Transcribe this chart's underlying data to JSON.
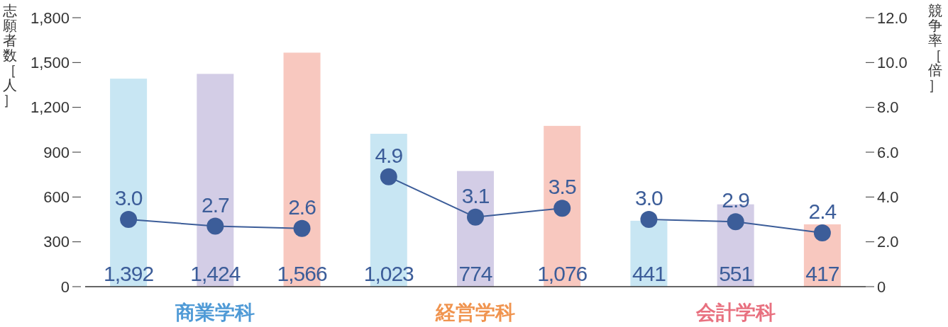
{
  "chart_data": {
    "type": "bar",
    "ylabel": "志願者数［人］",
    "y2label": "競争率［倍］",
    "categories": [
      null,
      null,
      null,
      null,
      null,
      null,
      null,
      null,
      null
    ],
    "annotations": [
      "商業学科",
      "経営学科",
      "会計学科"
    ],
    "ylim": [
      0,
      1800
    ],
    "yticks": [
      0,
      300,
      600,
      900,
      {
        "value": 1200,
        "label": "1,200"
      },
      {
        "value": 1500,
        "label": "1,500"
      },
      {
        "value": 1800,
        "label": "1,800"
      }
    ],
    "y2lim": [
      0,
      12
    ],
    "y2ticks": [
      0,
      {
        "value": 2,
        "label": "2.0"
      },
      {
        "value": 4,
        "label": "4.0"
      },
      {
        "value": 6,
        "label": "6.0"
      },
      {
        "value": 8,
        "label": "8.0"
      },
      {
        "value": 10,
        "label": "10.0"
      },
      {
        "value": 12,
        "label": "12.0"
      }
    ],
    "series": [
      {
        "colors": [
          "#c8e6f3",
          "#d3cde6",
          "#f8c8bf",
          "#c8e6f3",
          "#d3cde6",
          "#f8c8bf",
          "#c8e6f3",
          "#d3cde6",
          "#f8c8bf"
        ],
        "values": [
          1392,
          1424,
          1566,
          1023,
          774,
          1076,
          441,
          551,
          417
        ],
        "value_labels": [
          "1,392",
          "1,424",
          "1,566",
          "1,023",
          "774",
          "1,076",
          "441",
          "551",
          "417"
        ]
      },
      {
        "type": "line",
        "axis": "y2",
        "color": "#3c5d99",
        "marker": "circle",
        "values": [
          3.0,
          2.7,
          2.6,
          null,
          null,
          null,
          null,
          null,
          null
        ],
        "value_labels": [
          "3.0",
          "2.7",
          "2.6",
          null,
          null,
          null,
          null,
          null,
          null
        ]
      },
      {
        "type": "line",
        "axis": "y2",
        "color": "#3c5d99",
        "marker": "circle",
        "values": [
          null,
          null,
          null,
          4.9,
          3.1,
          3.5,
          null,
          null,
          null
        ],
        "value_labels": [
          null,
          null,
          null,
          "4.9",
          "3.1",
          "3.5",
          null,
          null,
          null
        ]
      },
      {
        "type": "line",
        "axis": "y2",
        "color": "#3c5d99",
        "marker": "circle",
        "values": [
          null,
          null,
          null,
          null,
          null,
          null,
          3.0,
          2.9,
          2.4
        ],
        "value_labels": [
          null,
          null,
          null,
          null,
          null,
          null,
          "3.0",
          "2.9",
          "2.4"
        ]
      }
    ],
    "grid": false
  }
}
